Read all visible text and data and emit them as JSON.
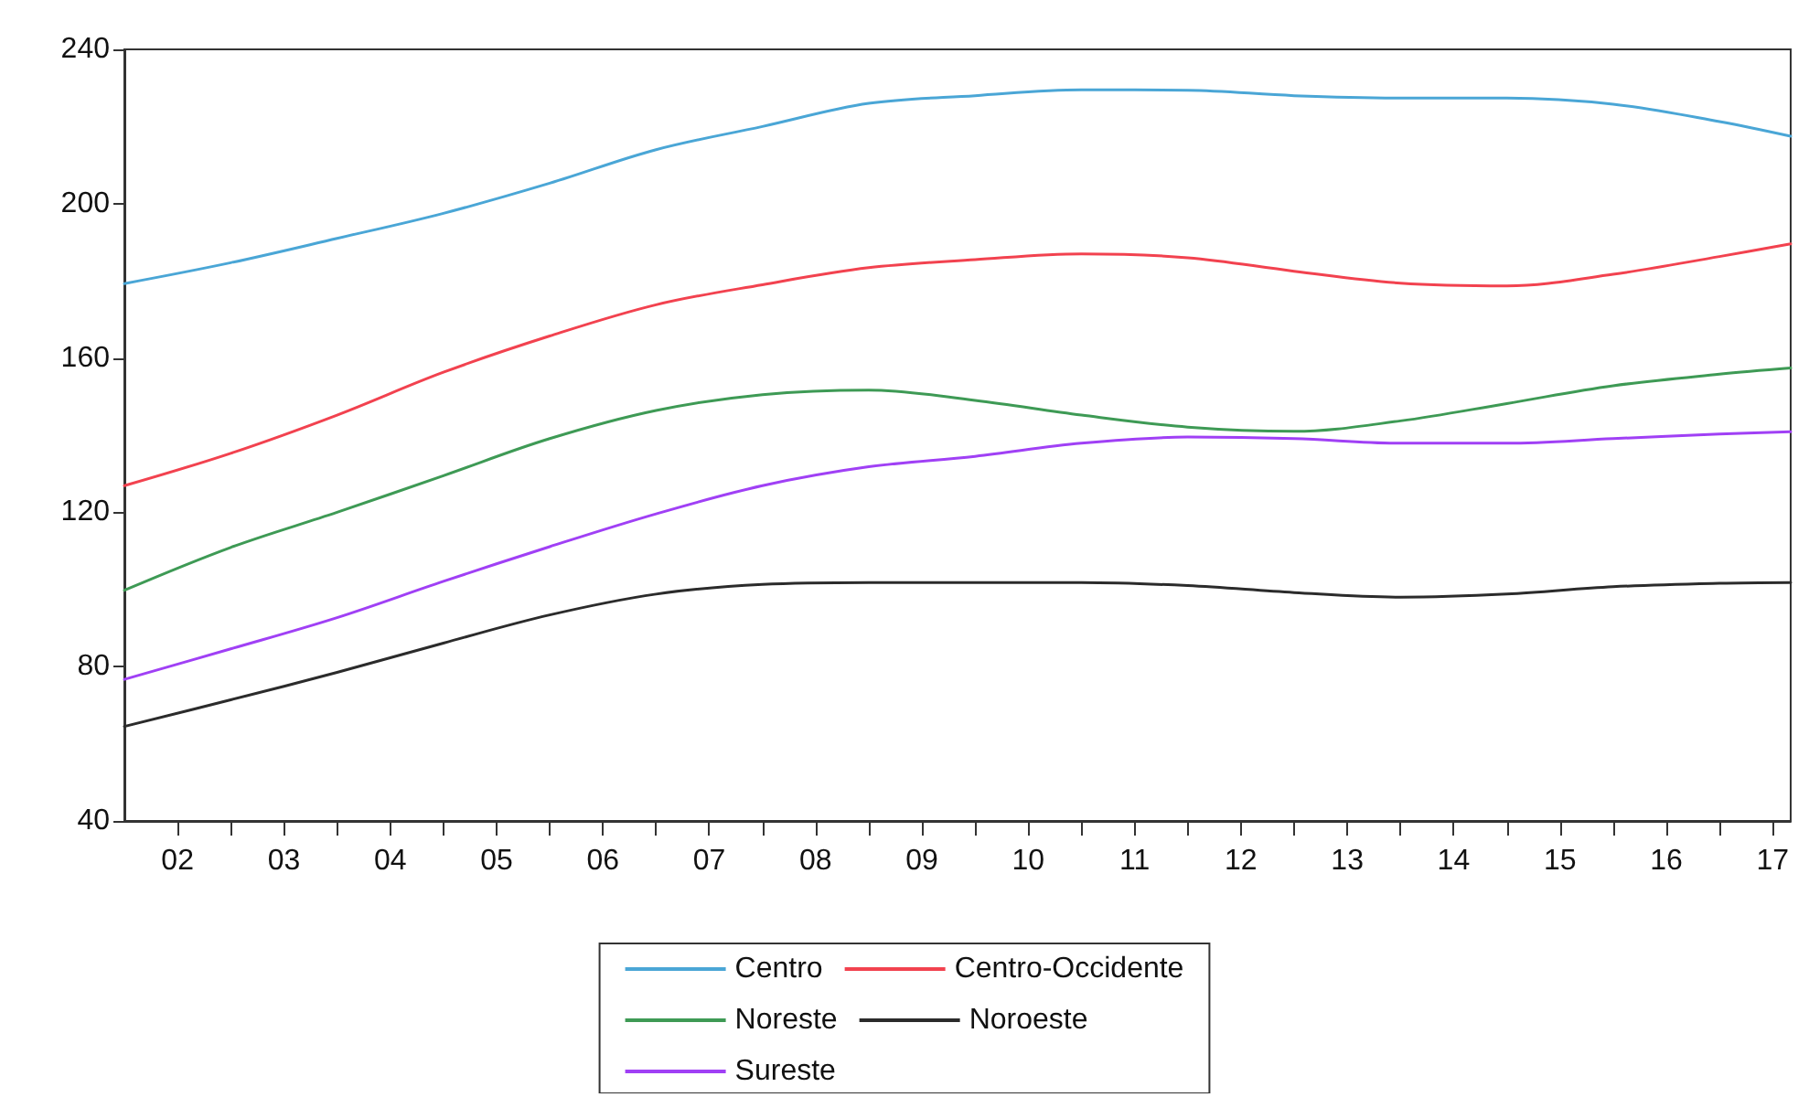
{
  "chart_data": {
    "type": "line",
    "x": [
      1.5,
      2.5,
      3.5,
      4.5,
      5.5,
      6.5,
      7.5,
      8.5,
      9.5,
      10.5,
      11.5,
      12.5,
      13.5,
      14.5,
      15.5,
      16.5,
      17.17
    ],
    "series": [
      {
        "name": "Centro",
        "color": "#4aa6d6",
        "values": [
          179.3,
          184.7,
          191,
          197.5,
          205.3,
          214,
          220,
          226,
          228,
          229.5,
          229.4,
          228,
          227.4,
          227.4,
          225.8,
          221.3,
          217.5
        ]
      },
      {
        "name": "Centro-Occidente",
        "color": "#f2424f",
        "values": [
          126.9,
          135.3,
          145.2,
          156.3,
          165.7,
          173.8,
          179,
          183.4,
          185.5,
          187,
          186,
          182.5,
          179.4,
          178.7,
          181.7,
          186.3,
          189.6
        ]
      },
      {
        "name": "Noreste",
        "color": "#3e9a55",
        "values": [
          99.8,
          110.9,
          120,
          129.5,
          139.1,
          146.4,
          150.5,
          151.7,
          149,
          145.2,
          142.1,
          141,
          143.7,
          148.2,
          152.8,
          155.8,
          157.4
        ]
      },
      {
        "name": "Noroeste",
        "color": "#2b2b2b",
        "values": [
          64.5,
          71.4,
          78.5,
          86.1,
          93.4,
          98.8,
          101.3,
          101.8,
          101.8,
          101.8,
          101,
          99.2,
          98,
          98.8,
          100.7,
          101.6,
          101.8
        ]
      },
      {
        "name": "Sureste",
        "color": "#a040f5",
        "values": [
          76.7,
          84.6,
          92.7,
          102.1,
          111.1,
          119.6,
          126.9,
          131.8,
          134.5,
          137.9,
          139.5,
          139.1,
          137.9,
          137.9,
          139.1,
          140.3,
          140.9
        ]
      }
    ],
    "xlim": [
      1.5,
      17.17
    ],
    "xticks": [
      {
        "value": 2,
        "label": "02"
      },
      {
        "value": 2.5,
        "label": null
      },
      {
        "value": 3,
        "label": "03"
      },
      {
        "value": 3.5,
        "label": null
      },
      {
        "value": 4,
        "label": "04"
      },
      {
        "value": 4.5,
        "label": null
      },
      {
        "value": 5,
        "label": "05"
      },
      {
        "value": 5.5,
        "label": null
      },
      {
        "value": 6,
        "label": "06"
      },
      {
        "value": 6.5,
        "label": null
      },
      {
        "value": 7,
        "label": "07"
      },
      {
        "value": 7.5,
        "label": null
      },
      {
        "value": 8,
        "label": "08"
      },
      {
        "value": 8.5,
        "label": null
      },
      {
        "value": 9,
        "label": "09"
      },
      {
        "value": 9.5,
        "label": null
      },
      {
        "value": 10,
        "label": "10"
      },
      {
        "value": 10.5,
        "label": null
      },
      {
        "value": 11,
        "label": "11"
      },
      {
        "value": 11.5,
        "label": null
      },
      {
        "value": 12,
        "label": "12"
      },
      {
        "value": 12.5,
        "label": null
      },
      {
        "value": 13,
        "label": "13"
      },
      {
        "value": 13.5,
        "label": null
      },
      {
        "value": 14,
        "label": "14"
      },
      {
        "value": 14.5,
        "label": null
      },
      {
        "value": 15,
        "label": "15"
      },
      {
        "value": 15.5,
        "label": null
      },
      {
        "value": 16,
        "label": "16"
      },
      {
        "value": 16.5,
        "label": null
      },
      {
        "value": 17,
        "label": "17"
      }
    ],
    "ylim": [
      40,
      240
    ],
    "yticks": [
      40,
      80,
      120,
      160,
      200,
      240
    ],
    "grid": false,
    "legend": "bottom",
    "marker": "none"
  }
}
